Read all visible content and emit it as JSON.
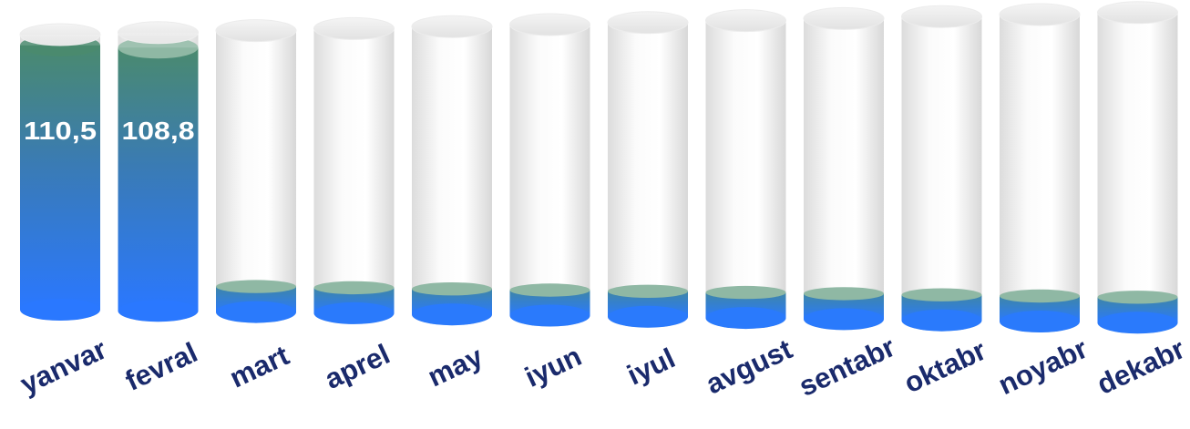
{
  "chart_data": {
    "type": "bar",
    "style": "3d-cylinder",
    "categories": [
      "yanvar",
      "fevral",
      "mart",
      "aprel",
      "may",
      "iyun",
      "iyul",
      "avgust",
      "sentabr",
      "oktabr",
      "noyabr",
      "dekabr"
    ],
    "values": [
      110.5,
      108.8,
      null,
      null,
      null,
      null,
      null,
      null,
      null,
      null,
      null,
      null
    ],
    "value_labels": [
      "110,5",
      "108,8",
      "",
      "",
      "",
      "",
      "",
      "",
      "",
      "",
      "",
      ""
    ],
    "title": "",
    "xlabel": "",
    "ylabel": "",
    "ylim": [
      0,
      115
    ],
    "grid": false,
    "legend": "none",
    "colors": {
      "fill_top": "#4a8a6e",
      "fill_bottom": "#2a78ff",
      "cap": "#8fb8a4",
      "label": "#1a2a6c",
      "value_text": "#ffffff",
      "tube": "#e6e6e6"
    }
  }
}
